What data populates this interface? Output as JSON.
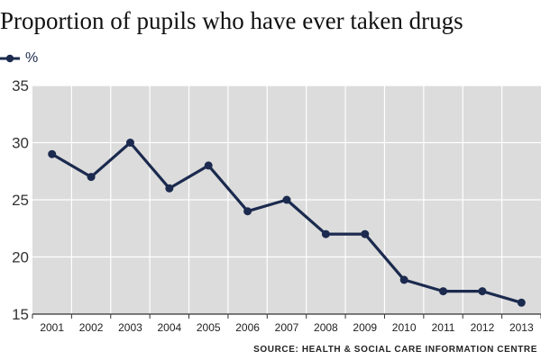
{
  "title": "Proportion of pupils who have ever taken drugs",
  "source": "SOURCE: HEALTH & SOCIAL CARE INFORMATION CENTRE",
  "colors": {
    "plot_background": "#dcdcdc",
    "line": "#1b2a4e",
    "grid": "#ffffff"
  },
  "chart_data": {
    "type": "line",
    "title": "Proportion of pupils who have ever taken drugs",
    "xlabel": "",
    "ylabel": "",
    "categories": [
      "2001",
      "2002",
      "2003",
      "2004",
      "2005",
      "2006",
      "2007",
      "2008",
      "2009",
      "2010",
      "2011",
      "2012",
      "2013"
    ],
    "series": [
      {
        "name": "%",
        "values": [
          29,
          27,
          30,
          26,
          28,
          24,
          25,
          22,
          22,
          18,
          17,
          17,
          16
        ]
      }
    ],
    "ylim": [
      15,
      35
    ],
    "yticks": [
      "15",
      "20",
      "25",
      "30",
      "35"
    ],
    "grid": true,
    "legend": "top-left"
  }
}
